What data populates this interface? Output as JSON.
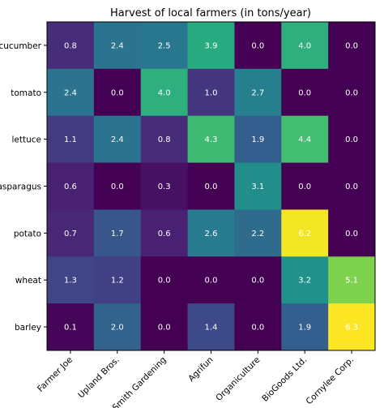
{
  "chart_data": {
    "type": "heatmap",
    "title": "Harvest of local farmers (in tons/year)",
    "x_categories": [
      "Farmer Joe",
      "Upland Bros.",
      "Smith Gardening",
      "Agrifun",
      "Organiculture",
      "BioGoods Ltd.",
      "Cornylee Corp."
    ],
    "y_categories": [
      "cucumber",
      "tomato",
      "lettuce",
      "asparagus",
      "potato",
      "wheat",
      "barley"
    ],
    "values": [
      [
        0.8,
        2.4,
        2.5,
        3.9,
        0.0,
        4.0,
        0.0
      ],
      [
        2.4,
        0.0,
        4.0,
        1.0,
        2.7,
        0.0,
        0.0
      ],
      [
        1.1,
        2.4,
        0.8,
        4.3,
        1.9,
        4.4,
        0.0
      ],
      [
        0.6,
        0.0,
        0.3,
        0.0,
        3.1,
        0.0,
        0.0
      ],
      [
        0.7,
        1.7,
        0.6,
        2.6,
        2.2,
        6.2,
        0.0
      ],
      [
        1.3,
        1.2,
        0.0,
        0.0,
        0.0,
        3.2,
        5.1
      ],
      [
        0.1,
        2.0,
        0.0,
        1.4,
        0.0,
        1.9,
        6.3
      ]
    ],
    "value_labels": [
      [
        "0.8",
        "2.4",
        "2.5",
        "3.9",
        "0.0",
        "4.0",
        "0.0"
      ],
      [
        "2.4",
        "0.0",
        "4.0",
        "1.0",
        "2.7",
        "0.0",
        "0.0"
      ],
      [
        "1.1",
        "2.4",
        "0.8",
        "4.3",
        "1.9",
        "4.4",
        "0.0"
      ],
      [
        "0.6",
        "0.0",
        "0.3",
        "0.0",
        "3.1",
        "0.0",
        "0.0"
      ],
      [
        "0.7",
        "1.7",
        "0.6",
        "2.6",
        "2.2",
        "6.2",
        "0.0"
      ],
      [
        "1.3",
        "1.2",
        "0.0",
        "0.0",
        "0.0",
        "3.2",
        "5.1"
      ],
      [
        "0.1",
        "2.0",
        "0.0",
        "1.4",
        "0.0",
        "1.9",
        "6.3"
      ]
    ],
    "colormap": "viridis",
    "value_range": [
      0.0,
      6.3
    ],
    "grid": false,
    "legend": "none"
  }
}
